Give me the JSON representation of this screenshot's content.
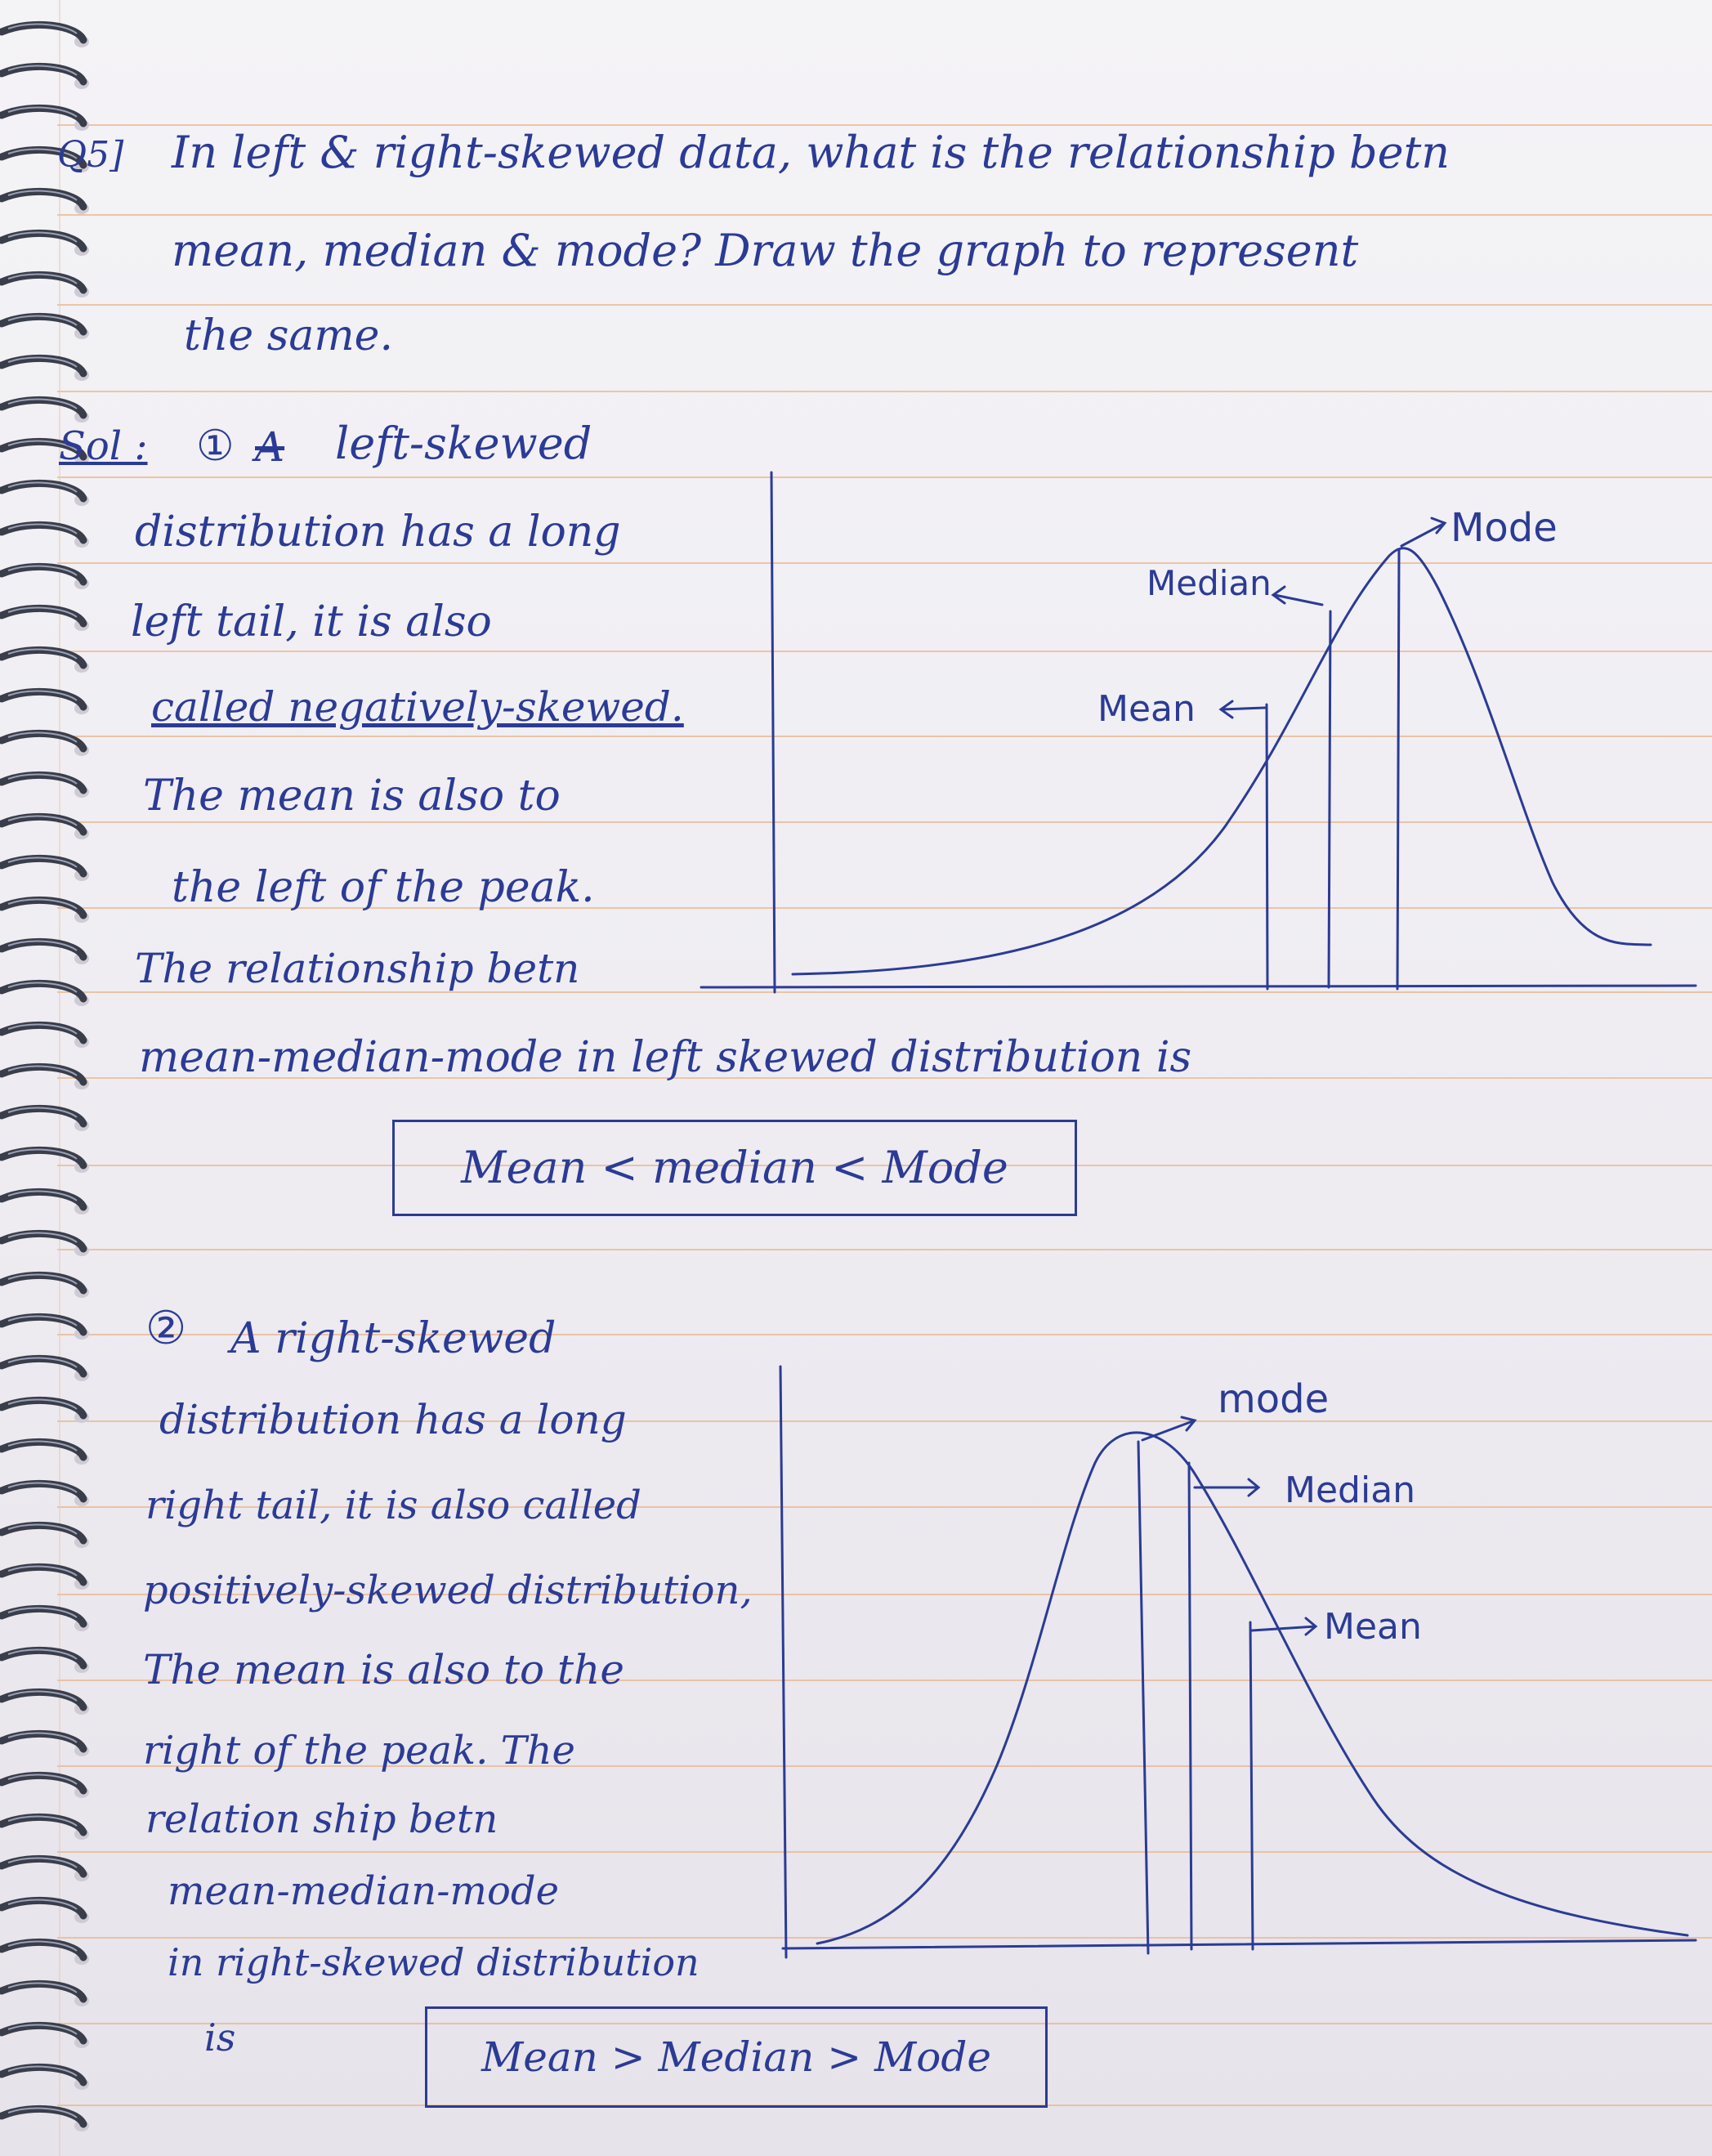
{
  "question": {
    "number": "Q5]",
    "line1": "In left & right-skewed data, what is the relationship betn",
    "line2": "mean, median & mode? Draw the graph to represent",
    "line3": "the same."
  },
  "solution_label": "Sol :",
  "part1": {
    "marker": "①",
    "struck": "A",
    "lines": [
      "left-skewed",
      "distribution has a long",
      "left tail, it is also",
      "called negatively-skewed.",
      "The mean is also to",
      "the left of the peak.",
      "The relationship betn",
      "mean-median-mode in left skewed distribution is"
    ],
    "boxed": "Mean < median < Mode",
    "graph_labels": {
      "mode": "Mode",
      "median": "Median",
      "mean": "Mean"
    }
  },
  "part2": {
    "marker": "②",
    "lines": [
      "A right-skewed",
      "distribution has a long",
      "right tail, it is also called",
      "positively-skewed distribution,",
      "The mean is also to the",
      "right of the peak. The",
      "relation ship betn",
      "mean-median-mode",
      "in right-skewed distribution",
      "is"
    ],
    "boxed": "Mean > Median > Mode",
    "graph_labels": {
      "mode": "mode",
      "median": "Median",
      "mean": "Mean"
    }
  },
  "style": {
    "ink": "#2b3b95",
    "rule": "#e8b58c",
    "paper": "#f2f1f4"
  }
}
